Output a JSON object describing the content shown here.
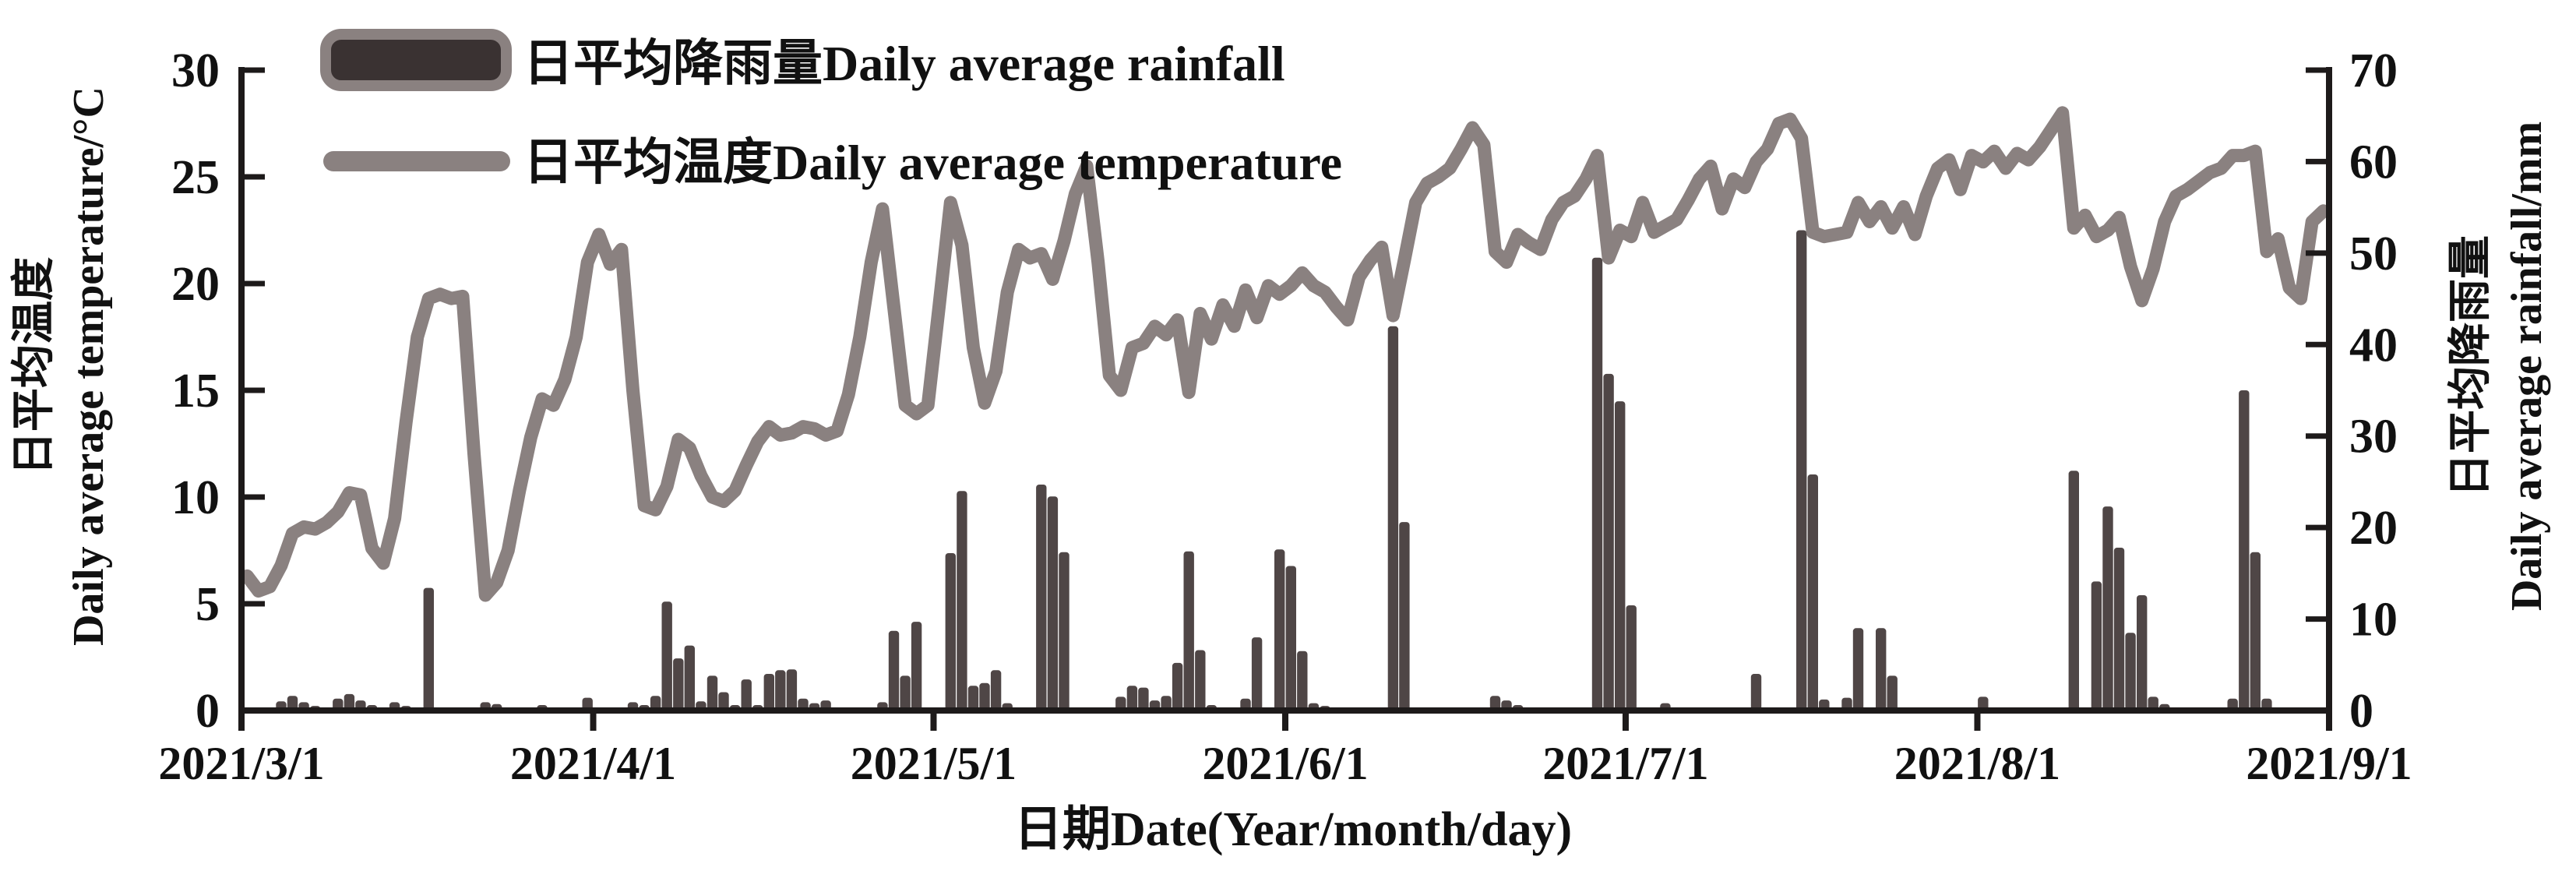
{
  "chart_data": {
    "type": "bar",
    "subtype": "bar+line dual-axis daily weather chart",
    "title": "",
    "start_date": "2021/3/1",
    "end_date": "2021/9/1",
    "days_per_month": [
      31,
      30,
      31,
      30,
      31,
      31
    ],
    "x_axis": {
      "label": "日期Date(Year/month/day)",
      "tick_labels": [
        "2021/3/1",
        "2021/4/1",
        "2021/5/1",
        "2021/6/1",
        "2021/7/1",
        "2021/8/1",
        "2021/9/1"
      ]
    },
    "left_axis": {
      "label_zh": "日平均温度",
      "label_en": "Daily average temperature/°C",
      "min": 0,
      "max": 30,
      "step": 5,
      "tick_labels": [
        "0",
        "5",
        "10",
        "15",
        "20",
        "25",
        "30"
      ]
    },
    "right_axis": {
      "label_zh": "日平均降雨量",
      "label_en": "Daily average rainfall/mm",
      "min": 0,
      "max": 70,
      "step": 10,
      "tick_labels": [
        "0",
        "10",
        "20",
        "30",
        "40",
        "50",
        "60",
        "70"
      ]
    },
    "legend": {
      "position": "top-left-inside",
      "rainfall_label": "日平均降雨量Daily average rainfall",
      "temperature_label": "日平均温度Daily average temperature"
    },
    "colors": {
      "bar_fill": "#4f4646",
      "bar_legend_fill": "#3a3232",
      "line_stroke": "#8a8180",
      "axis": "#1d1a1a",
      "text": "#111111"
    },
    "grid": false,
    "series": [
      {
        "name": "日平均降雨量Daily average rainfall",
        "type": "bar",
        "axis": "right",
        "unit": "mm",
        "values": [
          0,
          0,
          0,
          1.0,
          1.6,
          0.9,
          0.5,
          0,
          1.3,
          1.8,
          1.1,
          0.6,
          0,
          0.9,
          0.5,
          0,
          13.4,
          0,
          0,
          0,
          0,
          0.9,
          0.7,
          0,
          0,
          0,
          0.6,
          0,
          0,
          0,
          1.4,
          0,
          0,
          0,
          0.9,
          0.6,
          1.6,
          11.9,
          5.7,
          7.1,
          1.0,
          3.8,
          2.0,
          0.6,
          3.4,
          0.6,
          4.0,
          4.4,
          4.5,
          1.3,
          0.8,
          1.1,
          0,
          0,
          0,
          0,
          0.9,
          8.7,
          3.8,
          9.7,
          0,
          0,
          17.2,
          24.0,
          2.7,
          3.0,
          4.4,
          0.8,
          0,
          0,
          24.7,
          23.4,
          17.3,
          0,
          0,
          0,
          0,
          1.5,
          2.7,
          2.5,
          1.1,
          1.6,
          5.2,
          17.4,
          6.6,
          0.6,
          0,
          0,
          1.3,
          8.0,
          0,
          17.6,
          15.8,
          6.5,
          0.8,
          0.5,
          0,
          0,
          0,
          0,
          0,
          42.0,
          20.6,
          0,
          0,
          0,
          0,
          0,
          0,
          0,
          1.6,
          1.1,
          0.6,
          0,
          0,
          0,
          0,
          0,
          0,
          49.5,
          36.8,
          33.8,
          11.5,
          0,
          0,
          0.8,
          0,
          0,
          0,
          0,
          0,
          0,
          0,
          4.0,
          0,
          0,
          0,
          52.5,
          25.8,
          1.2,
          0,
          1.4,
          9.0,
          0,
          9.0,
          3.8,
          0,
          0,
          0,
          0,
          0,
          0,
          0,
          1.5,
          0,
          0,
          0,
          0,
          0,
          0,
          0,
          26.2,
          0,
          14.1,
          22.3,
          17.8,
          8.5,
          12.6,
          1.5,
          0.7,
          0,
          0,
          0,
          0,
          0,
          1.3,
          35.0,
          17.3,
          1.3,
          0,
          0,
          0,
          0,
          0
        ]
      },
      {
        "name": "日平均温度Daily average temperature",
        "type": "line",
        "axis": "left",
        "unit": "°C",
        "values": [
          6.3,
          5.6,
          5.8,
          6.8,
          8.3,
          8.6,
          8.5,
          8.8,
          9.3,
          10.2,
          10.1,
          7.6,
          6.9,
          9.0,
          13.5,
          17.5,
          19.3,
          19.5,
          19.3,
          19.4,
          12.0,
          5.4,
          6.0,
          7.5,
          10.3,
          12.8,
          14.6,
          14.3,
          15.5,
          17.5,
          21.0,
          22.3,
          20.9,
          21.6,
          15.0,
          9.6,
          9.4,
          10.5,
          12.7,
          12.3,
          11.0,
          10.0,
          9.8,
          10.3,
          11.5,
          12.6,
          13.3,
          12.9,
          13.0,
          13.3,
          13.2,
          12.9,
          13.1,
          14.8,
          17.5,
          21.0,
          23.5,
          18.9,
          14.3,
          13.9,
          14.3,
          19.0,
          23.8,
          21.8,
          17.0,
          14.4,
          15.9,
          19.6,
          21.6,
          21.2,
          21.4,
          20.2,
          22.0,
          24.2,
          25.5,
          21.0,
          15.7,
          15.0,
          17.0,
          17.2,
          18.0,
          17.6,
          18.3,
          14.9,
          18.6,
          17.4,
          19.0,
          18.0,
          19.7,
          18.4,
          19.9,
          19.5,
          19.9,
          20.5,
          19.9,
          19.6,
          18.9,
          18.3,
          20.3,
          21.1,
          21.7,
          18.5,
          21.1,
          23.8,
          24.7,
          25.0,
          25.4,
          26.3,
          27.3,
          26.5,
          21.5,
          21.0,
          22.3,
          21.9,
          21.6,
          23.0,
          23.8,
          24.1,
          24.9,
          26.0,
          21.2,
          22.5,
          22.2,
          23.8,
          22.4,
          22.7,
          23.0,
          23.9,
          24.9,
          25.5,
          23.5,
          24.9,
          24.5,
          25.7,
          26.3,
          27.5,
          27.7,
          26.8,
          22.4,
          22.2,
          22.3,
          22.4,
          23.8,
          22.9,
          23.6,
          22.6,
          23.6,
          22.3,
          24.1,
          25.4,
          25.8,
          24.4,
          26.0,
          25.7,
          26.2,
          25.4,
          26.1,
          25.8,
          26.4,
          27.2,
          28.0,
          22.6,
          23.2,
          22.2,
          22.5,
          23.1,
          20.8,
          19.2,
          20.7,
          22.9,
          24.1,
          24.4,
          24.8,
          25.2,
          25.4,
          26.0,
          26.0,
          26.2,
          21.5,
          22.1,
          19.8,
          19.3,
          22.9,
          23.4
        ]
      }
    ]
  }
}
